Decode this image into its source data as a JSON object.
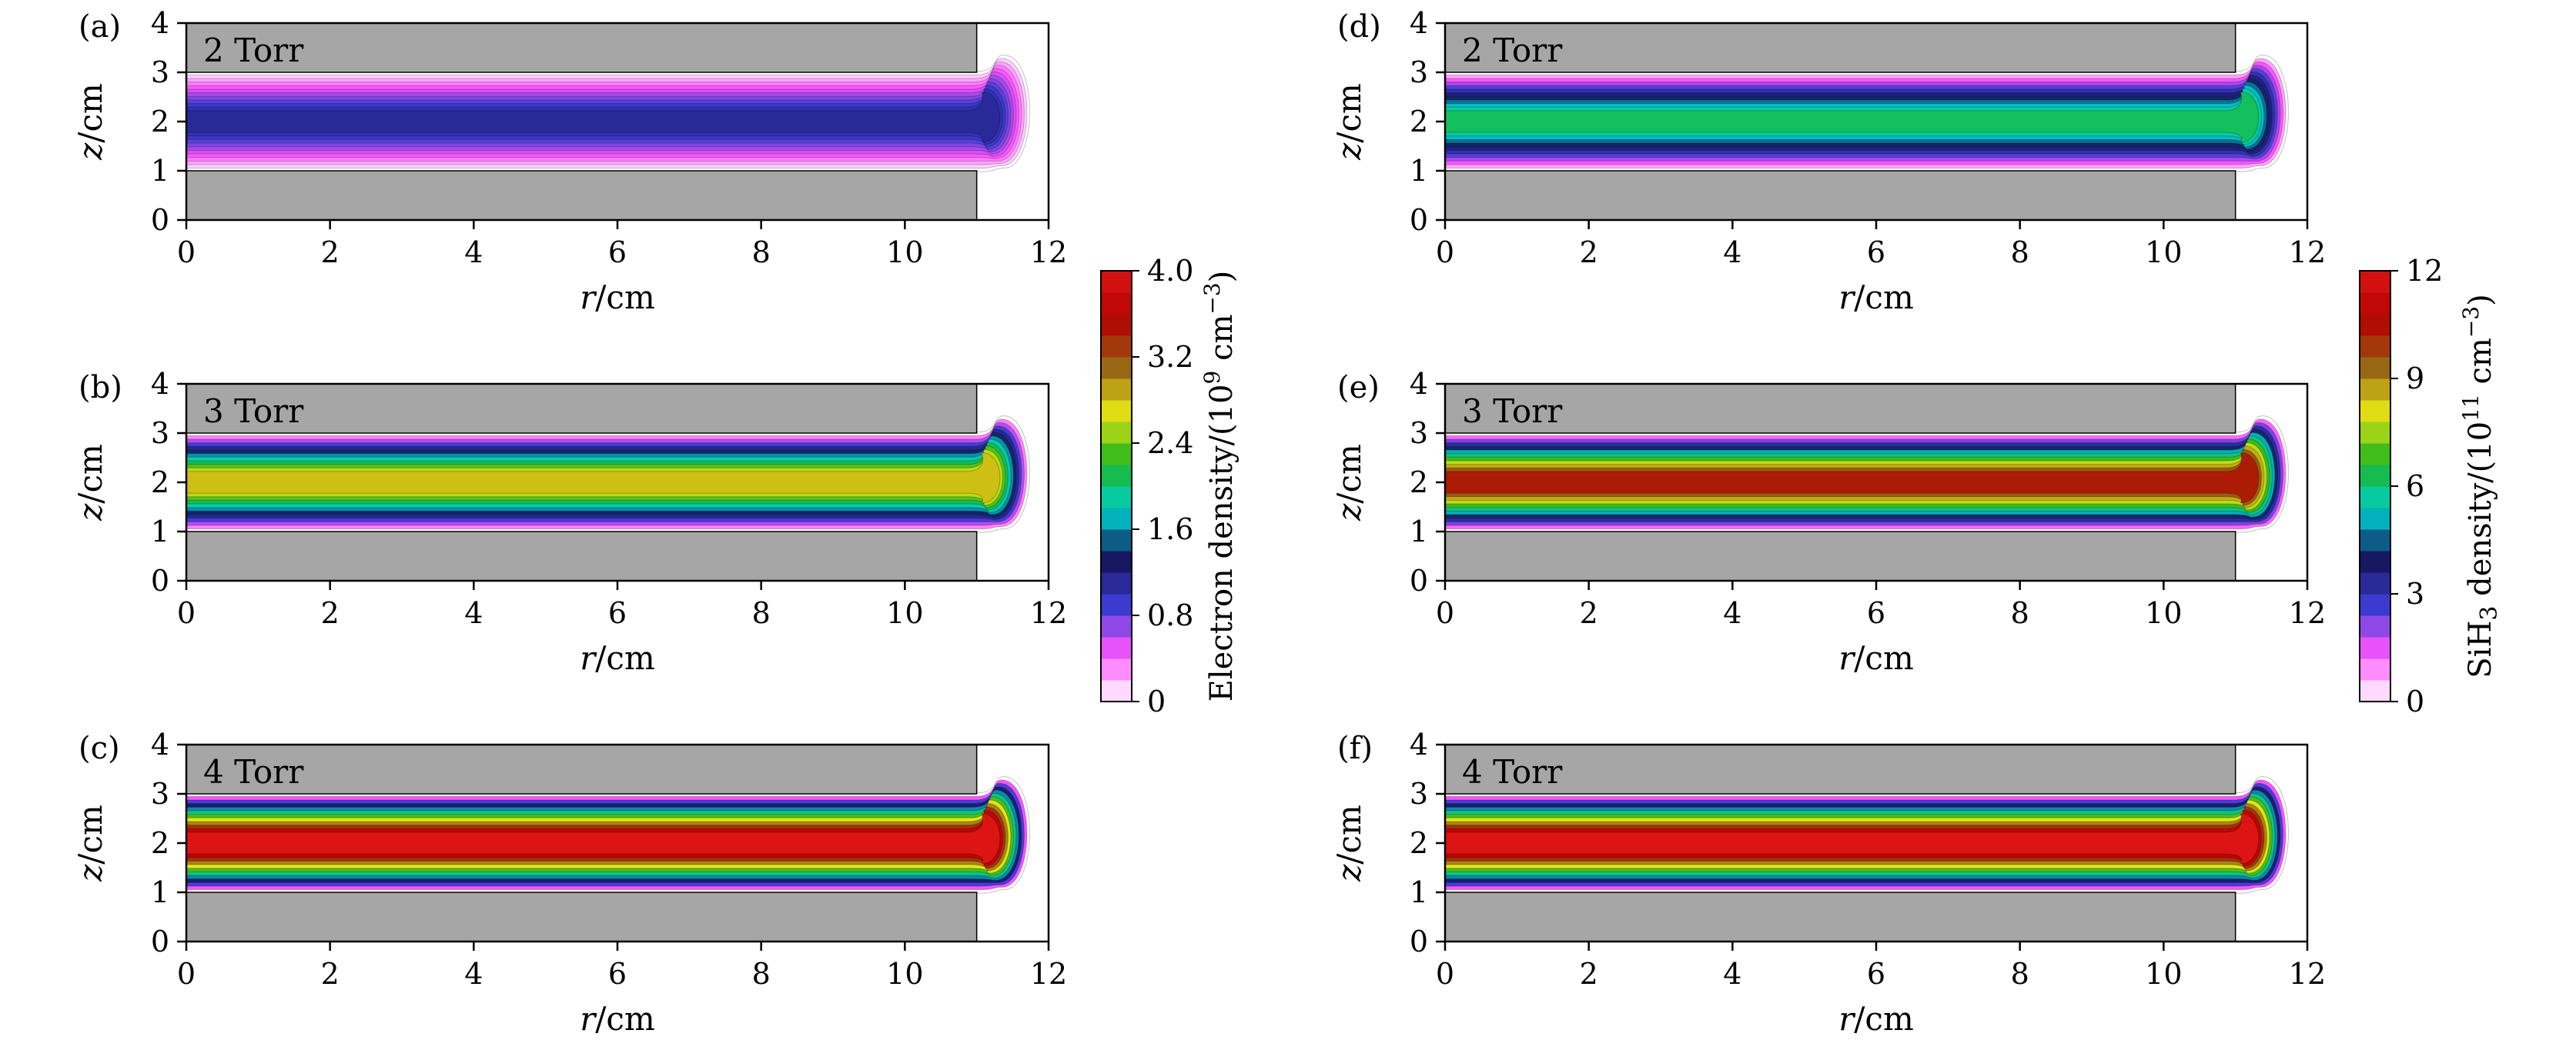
{
  "chart_data": [
    {
      "type": "heatmap",
      "panel": "(a)",
      "title": "2 Torr",
      "quantity": "electron",
      "xlabel": {
        "sym": "r",
        "unit": "/cm"
      },
      "ylabel": {
        "sym": "z",
        "unit": "/cm"
      },
      "xlim": [
        0,
        12
      ],
      "ylim": [
        0,
        4
      ],
      "xticks": [
        0,
        2,
        4,
        6,
        8,
        10,
        12
      ],
      "yticks": [
        0,
        1,
        2,
        3,
        4
      ],
      "electrode_edge_r": 11,
      "gap_z": [
        1,
        3
      ],
      "peak_value": 1.1
    },
    {
      "type": "heatmap",
      "panel": "(b)",
      "title": "3 Torr",
      "quantity": "electron",
      "xlabel": {
        "sym": "r",
        "unit": "/cm"
      },
      "ylabel": {
        "sym": "z",
        "unit": "/cm"
      },
      "xlim": [
        0,
        12
      ],
      "ylim": [
        0,
        4
      ],
      "xticks": [
        0,
        2,
        4,
        6,
        8,
        10,
        12
      ],
      "yticks": [
        0,
        1,
        2,
        3,
        4
      ],
      "electrode_edge_r": 11,
      "gap_z": [
        1,
        3
      ],
      "peak_value": 2.8
    },
    {
      "type": "heatmap",
      "panel": "(c)",
      "title": "4 Torr",
      "quantity": "electron",
      "xlabel": {
        "sym": "r",
        "unit": "/cm"
      },
      "ylabel": {
        "sym": "z",
        "unit": "/cm"
      },
      "xlim": [
        0,
        12
      ],
      "ylim": [
        0,
        4
      ],
      "xticks": [
        0,
        2,
        4,
        6,
        8,
        10,
        12
      ],
      "yticks": [
        0,
        1,
        2,
        3,
        4
      ],
      "electrode_edge_r": 11,
      "gap_z": [
        1,
        3
      ],
      "peak_value": 4.0
    },
    {
      "type": "heatmap",
      "panel": "(d)",
      "title": "2 Torr",
      "quantity": "sih3",
      "xlabel": {
        "sym": "r",
        "unit": "/cm"
      },
      "ylabel": {
        "sym": "z",
        "unit": "/cm"
      },
      "xlim": [
        0,
        12
      ],
      "ylim": [
        0,
        4
      ],
      "xticks": [
        0,
        2,
        4,
        6,
        8,
        10,
        12
      ],
      "yticks": [
        0,
        1,
        2,
        3,
        4
      ],
      "electrode_edge_r": 11,
      "gap_z": [
        1,
        3
      ],
      "peak_value": 6.2
    },
    {
      "type": "heatmap",
      "panel": "(e)",
      "title": "3 Torr",
      "quantity": "sih3",
      "xlabel": {
        "sym": "r",
        "unit": "/cm"
      },
      "ylabel": {
        "sym": "z",
        "unit": "/cm"
      },
      "xlim": [
        0,
        12
      ],
      "ylim": [
        0,
        4
      ],
      "xticks": [
        0,
        2,
        4,
        6,
        8,
        10,
        12
      ],
      "yticks": [
        0,
        1,
        2,
        3,
        4
      ],
      "electrode_edge_r": 11,
      "gap_z": [
        1,
        3
      ],
      "peak_value": 10.3
    },
    {
      "type": "heatmap",
      "panel": "(f)",
      "title": "4 Torr",
      "quantity": "sih3",
      "xlabel": {
        "sym": "r",
        "unit": "/cm"
      },
      "ylabel": {
        "sym": "z",
        "unit": "/cm"
      },
      "xlim": [
        0,
        12
      ],
      "ylim": [
        0,
        4
      ],
      "xticks": [
        0,
        2,
        4,
        6,
        8,
        10,
        12
      ],
      "yticks": [
        0,
        1,
        2,
        3,
        4
      ],
      "electrode_edge_r": 11,
      "gap_z": [
        1,
        3
      ],
      "peak_value": 12.0
    }
  ],
  "colorbars": {
    "electron": {
      "title_main": "Electron density/(10",
      "title_exp": "9",
      "title_unit": " cm",
      "title_unit_exp": "−3",
      "title_close": ")",
      "min": 0,
      "max": 4.0,
      "levels": 20,
      "ticks": [
        "0",
        "0.8",
        "1.6",
        "2.4",
        "3.2",
        "4.0"
      ]
    },
    "sih3": {
      "title_pre": "SiH",
      "title_sub": "3",
      "title_main": " density/(10",
      "title_exp": "11",
      "title_unit": " cm",
      "title_unit_exp": "−3",
      "title_close": ")",
      "min": 0,
      "max": 12,
      "levels": 20,
      "ticks": [
        "0",
        "3",
        "6",
        "9",
        "12"
      ]
    }
  },
  "colors": {
    "electrode": "#a6a6a6",
    "scale": [
      "#ffffff",
      "#ff55ff",
      "#3c3cd2",
      "#14145a",
      "#00d2d2",
      "#1eb41e",
      "#e6e614",
      "#966414",
      "#b40000",
      "#dc1414"
    ]
  }
}
